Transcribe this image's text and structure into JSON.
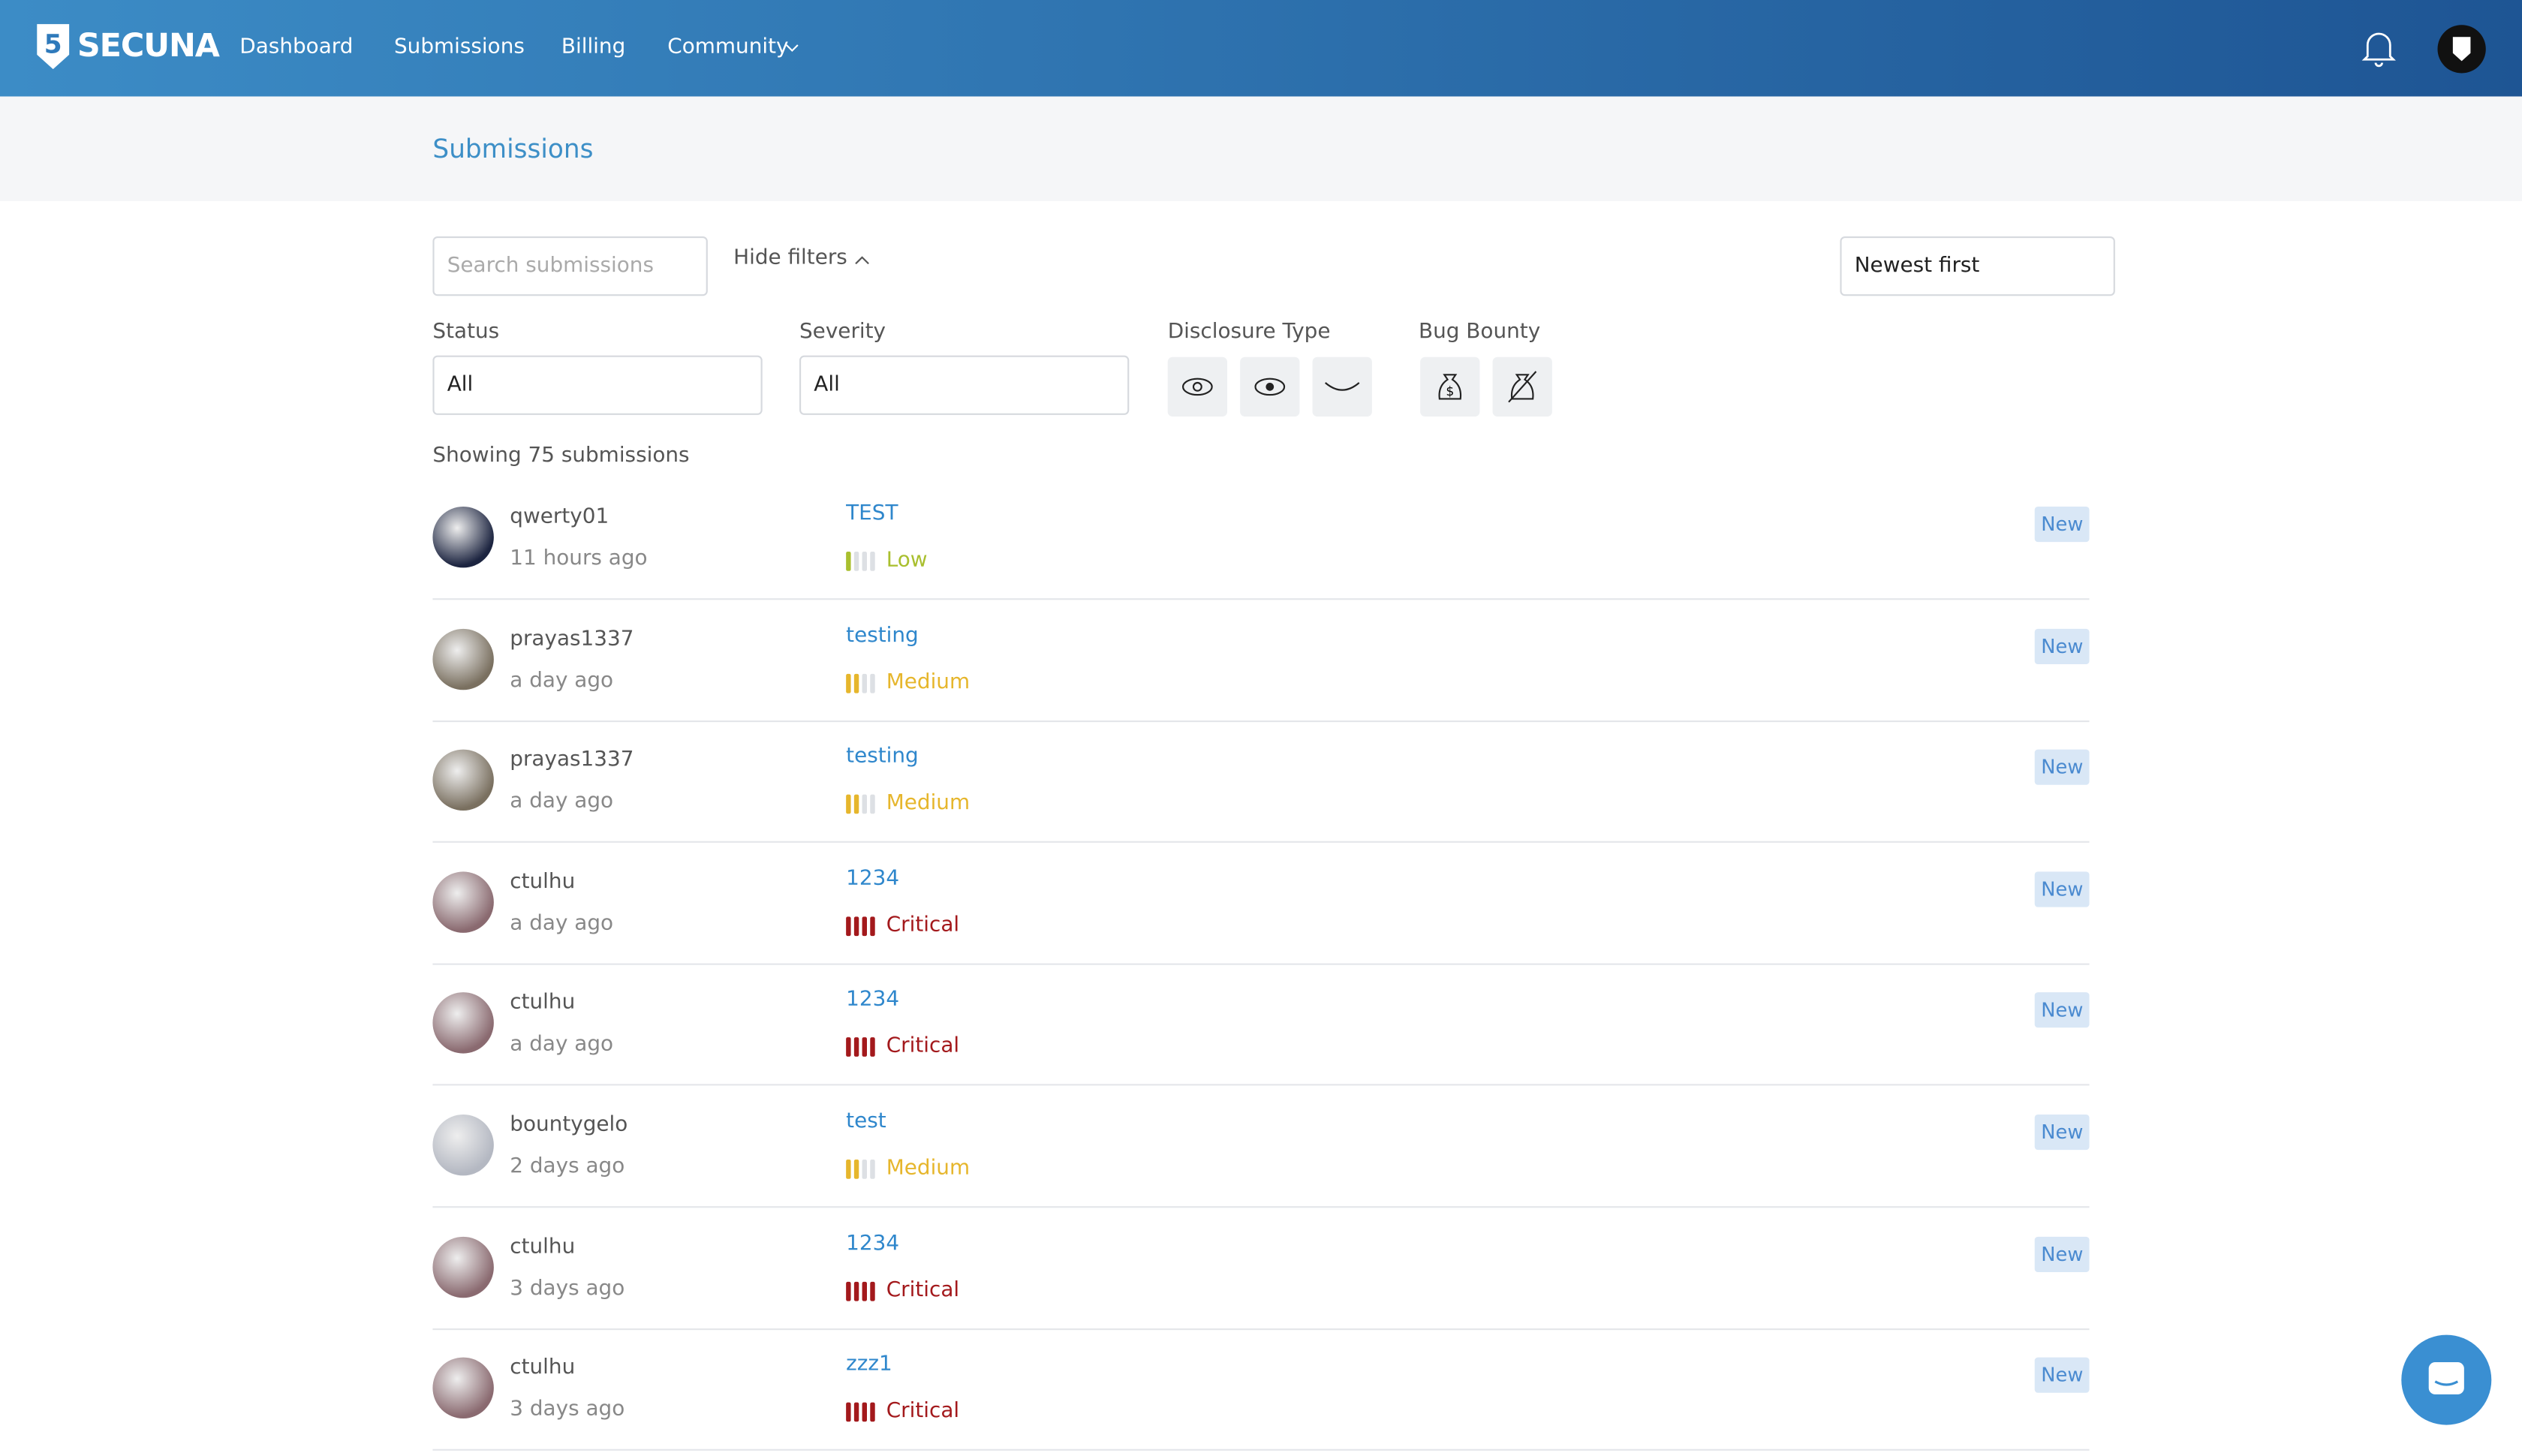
{
  "nav": {
    "logo": "SECUNA",
    "links": [
      "Dashboard",
      "Submissions",
      "Billing",
      "Community"
    ]
  },
  "breadcrumb": "Submissions",
  "toolbar": {
    "search_placeholder": "Search submissions",
    "hide_filters": "Hide filters",
    "sort": "Newest first"
  },
  "filters": {
    "status": {
      "label": "Status",
      "value": "All"
    },
    "severity": {
      "label": "Severity",
      "value": "All"
    },
    "disclosure_type": {
      "label": "Disclosure Type"
    },
    "bug_bounty": {
      "label": "Bug Bounty"
    }
  },
  "showing": "Showing 75 submissions",
  "rows": [
    {
      "user": "qwerty01",
      "time": "11 hours ago",
      "title": "TEST",
      "severity": {
        "label": "Low",
        "level": 1,
        "color": "#a9bf2e"
      },
      "status": "New",
      "avatar_color": "#1c2440"
    },
    {
      "user": "prayas1337",
      "time": "a day ago",
      "title": "testing",
      "severity": {
        "label": "Medium",
        "level": 2,
        "color": "#e6b62c"
      },
      "status": "New",
      "avatar_color": "#7a7060"
    },
    {
      "user": "prayas1337",
      "time": "a day ago",
      "title": "testing",
      "severity": {
        "label": "Medium",
        "level": 2,
        "color": "#e6b62c"
      },
      "status": "New",
      "avatar_color": "#7a7060"
    },
    {
      "user": "ctulhu",
      "time": "a day ago",
      "title": "1234",
      "severity": {
        "label": "Critical",
        "level": 4,
        "color": "#a3191c"
      },
      "status": "New",
      "avatar_color": "#8a6a70"
    },
    {
      "user": "ctulhu",
      "time": "a day ago",
      "title": "1234",
      "severity": {
        "label": "Critical",
        "level": 4,
        "color": "#a3191c"
      },
      "status": "New",
      "avatar_color": "#8a6a70"
    },
    {
      "user": "bountygelo",
      "time": "2 days ago",
      "title": "test",
      "severity": {
        "label": "Medium",
        "level": 2,
        "color": "#e6b62c"
      },
      "status": "New",
      "avatar_color": "#b4b8c2"
    },
    {
      "user": "ctulhu",
      "time": "3 days ago",
      "title": "1234",
      "severity": {
        "label": "Critical",
        "level": 4,
        "color": "#a3191c"
      },
      "status": "New",
      "avatar_color": "#8a6a70"
    },
    {
      "user": "ctulhu",
      "time": "3 days ago",
      "title": "zzz1",
      "severity": {
        "label": "Critical",
        "level": 4,
        "color": "#a3191c"
      },
      "status": "New",
      "avatar_color": "#8a6a70"
    }
  ]
}
